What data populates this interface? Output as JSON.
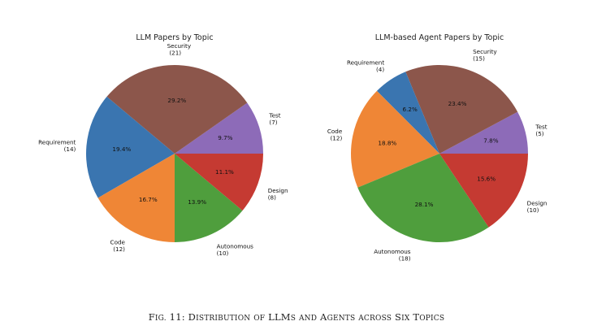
{
  "chart_data": [
    {
      "type": "pie",
      "title": "LLM Papers by Topic",
      "slices": [
        {
          "label": "Security",
          "value": 21,
          "pct": "29.2%",
          "color": "#8c564b"
        },
        {
          "label": "Requirement",
          "value": 14,
          "pct": "19.4%",
          "color": "#3a75b0"
        },
        {
          "label": "Code",
          "value": 12,
          "pct": "16.7%",
          "color": "#ef8636"
        },
        {
          "label": "Autonomous",
          "value": 10,
          "pct": "13.9%",
          "color": "#4f9e3d"
        },
        {
          "label": "Design",
          "value": 8,
          "pct": "11.1%",
          "color": "#c53a32"
        },
        {
          "label": "Test",
          "value": 7,
          "pct": "9.7%",
          "color": "#8d6bb8"
        }
      ]
    },
    {
      "type": "pie",
      "title": "LLM-based Agent Papers by Topic",
      "slices": [
        {
          "label": "Security",
          "value": 15,
          "pct": "23.4%",
          "color": "#8c564b"
        },
        {
          "label": "Requirement",
          "value": 4,
          "pct": "6.2%",
          "color": "#3a75b0"
        },
        {
          "label": "Code",
          "value": 12,
          "pct": "18.8%",
          "color": "#ef8636"
        },
        {
          "label": "Autonomous",
          "value": 18,
          "pct": "28.1%",
          "color": "#4f9e3d"
        },
        {
          "label": "Design",
          "value": 10,
          "pct": "15.6%",
          "color": "#c53a32"
        },
        {
          "label": "Test",
          "value": 5,
          "pct": "7.8%",
          "color": "#8d6bb8"
        }
      ]
    }
  ],
  "caption": "Fig. 11: Distribution of LLMs and Agents across six topics"
}
